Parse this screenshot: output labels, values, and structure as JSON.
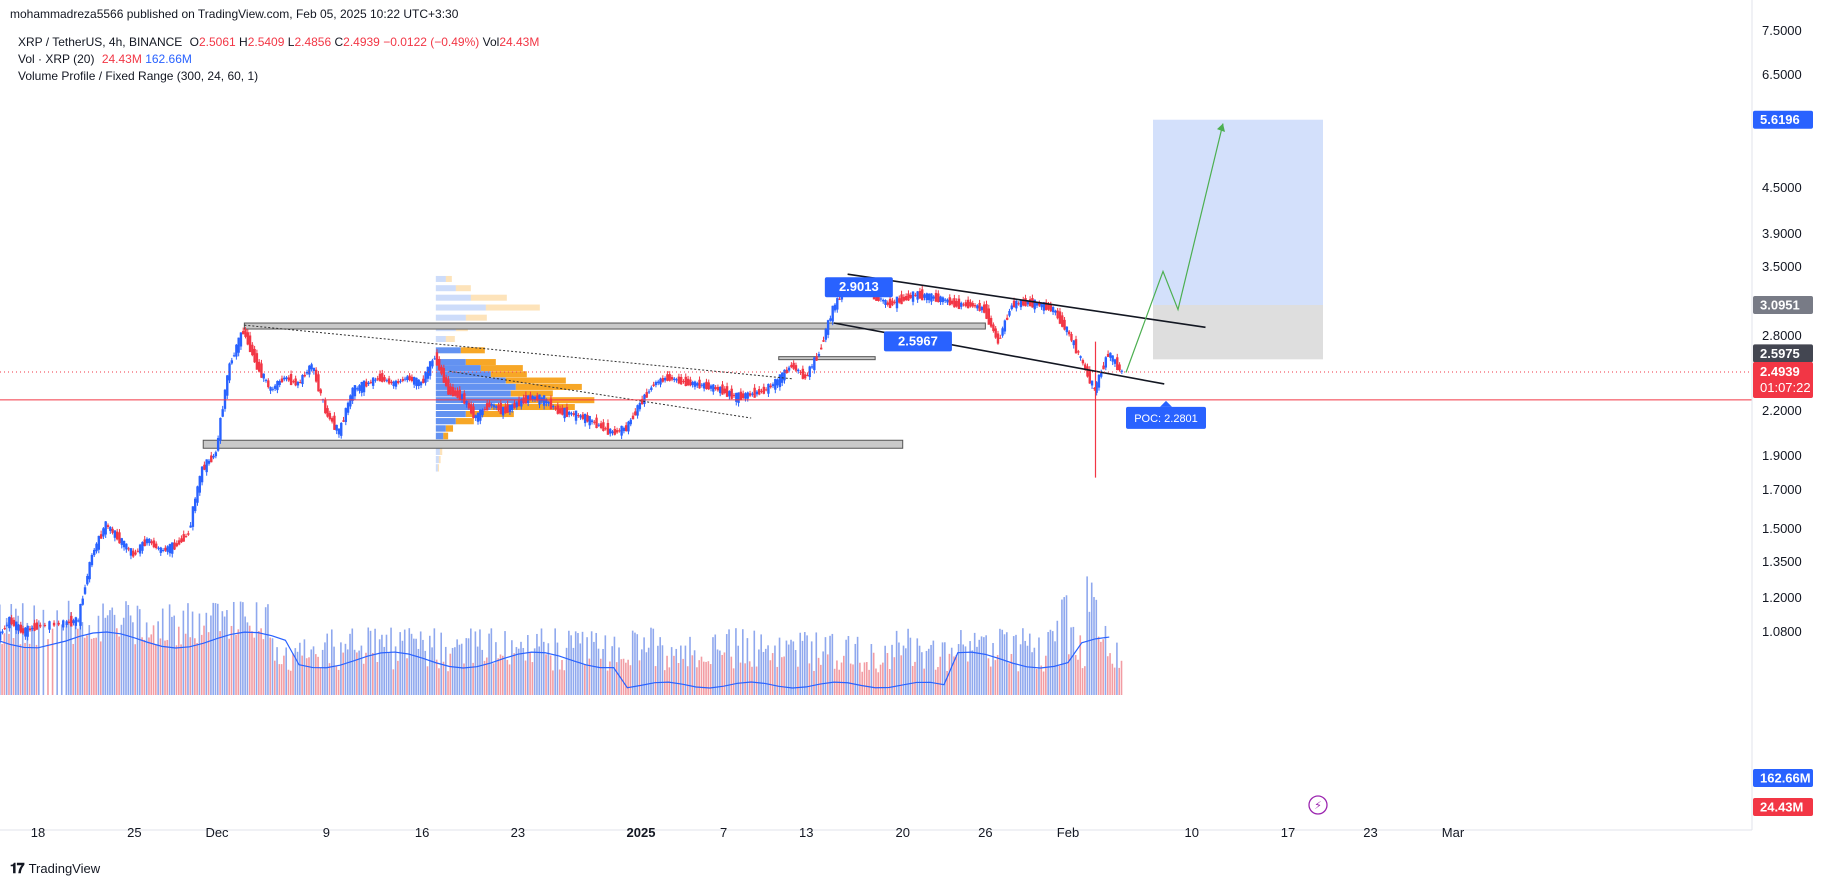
{
  "header": {
    "publisher": "mohammadreza5566 published on TradingView.com, Feb 05, 2025 10:22 UTC+3:30"
  },
  "legend": {
    "symbol": "XRP / TetherUS, 4h, BINANCE",
    "o_key": "O",
    "o_val": "2.5061",
    "h_key": "H",
    "h_val": "2.5409",
    "l_key": "L",
    "l_val": "2.4856",
    "c_key": "C",
    "c_val": "2.4939",
    "change": "−0.0122 (−0.49%)",
    "vol_key": "Vol",
    "vol_val": "24.43M",
    "vol_indicator": "Vol · XRP (20)",
    "vol_ind_val1": "24.43M",
    "vol_ind_val2": "162.66M",
    "vp_indicator": "Volume Profile / Fixed Range (300, 24, 60, 1)"
  },
  "footer": {
    "brand": "TradingView"
  },
  "colors": {
    "up": "#2962ff",
    "down": "#f23645",
    "vp_up": "#5b8cf0",
    "vp_down": "#f7a21b",
    "target_zone": "#d3e0fb",
    "stop_zone": "#dedede",
    "projection": "#4caf50",
    "ma_line": "#2962ff"
  },
  "chart_data": {
    "type": "candlestick",
    "scale": "log",
    "price_axis_ticks": [
      "7.5000",
      "6.5000",
      "4.5000",
      "3.9000",
      "3.5000",
      "2.8000",
      "2.2000",
      "1.9000",
      "1.7000",
      "1.5000",
      "1.3500",
      "1.2000",
      "1.0800"
    ],
    "time_axis_ticks": [
      "18",
      "25",
      "Dec",
      "9",
      "16",
      "23",
      "2025",
      "7",
      "13",
      "20",
      "26",
      "Feb",
      "10",
      "17",
      "23",
      "Mar"
    ],
    "price_labels": {
      "target": "5.6196",
      "entry": "3.0951",
      "stop": "2.5975",
      "last": "2.4939",
      "countdown": "01:07:22",
      "vol_ma": "162.66M",
      "vol": "24.43M"
    },
    "annotations": {
      "label_1": "2.9013",
      "label_2": "2.5967",
      "poc": "POC: 2.2801"
    },
    "trend_price_path": [
      [
        "Nov 15",
        1.05
      ],
      [
        "Nov 16",
        1.12
      ],
      [
        "Nov 17",
        1.08
      ],
      [
        "Nov 18",
        1.1
      ],
      [
        "Nov 20",
        1.11
      ],
      [
        "Nov 21",
        1.12
      ],
      [
        "Nov 22",
        1.38
      ],
      [
        "Nov 23",
        1.52
      ],
      [
        "Nov 24",
        1.45
      ],
      [
        "Nov 25",
        1.38
      ],
      [
        "Nov 26",
        1.45
      ],
      [
        "Nov 27",
        1.4
      ],
      [
        "Nov 28",
        1.42
      ],
      [
        "Nov 29",
        1.48
      ],
      [
        "Nov 30",
        1.82
      ],
      [
        "Dec 1",
        1.92
      ],
      [
        "Dec 2",
        2.55
      ],
      [
        "Dec 3",
        2.85
      ],
      [
        "Dec 4",
        2.55
      ],
      [
        "Dec 5",
        2.35
      ],
      [
        "Dec 6",
        2.45
      ],
      [
        "Dec 7",
        2.4
      ],
      [
        "Dec 8",
        2.55
      ],
      [
        "Dec 9",
        2.2
      ],
      [
        "Dec 10",
        2.05
      ],
      [
        "Dec 11",
        2.35
      ],
      [
        "Dec 12",
        2.4
      ],
      [
        "Dec 13",
        2.45
      ],
      [
        "Dec 14",
        2.4
      ],
      [
        "Dec 15",
        2.45
      ],
      [
        "Dec 16",
        2.4
      ],
      [
        "Dec 17",
        2.62
      ],
      [
        "Dec 18",
        2.35
      ],
      [
        "Dec 19",
        2.3
      ],
      [
        "Dec 20",
        2.15
      ],
      [
        "Dec 21",
        2.25
      ],
      [
        "Dec 22",
        2.2
      ],
      [
        "Dec 23",
        2.25
      ],
      [
        "Dec 24",
        2.3
      ],
      [
        "Dec 25",
        2.28
      ],
      [
        "Dec 26",
        2.2
      ],
      [
        "Dec 27",
        2.18
      ],
      [
        "Dec 28",
        2.15
      ],
      [
        "Dec 29",
        2.1
      ],
      [
        "Dec 30",
        2.05
      ],
      [
        "Dec 31",
        2.08
      ],
      [
        "Jan 1",
        2.25
      ],
      [
        "Jan 2",
        2.4
      ],
      [
        "Jan 3",
        2.45
      ],
      [
        "Jan 4",
        2.42
      ],
      [
        "Jan 5",
        2.4
      ],
      [
        "Jan 6",
        2.38
      ],
      [
        "Jan 7",
        2.35
      ],
      [
        "Jan 8",
        2.3
      ],
      [
        "Jan 9",
        2.32
      ],
      [
        "Jan 10",
        2.35
      ],
      [
        "Jan 11",
        2.42
      ],
      [
        "Jan 12",
        2.55
      ],
      [
        "Jan 13",
        2.45
      ],
      [
        "Jan 14",
        2.65
      ],
      [
        "Jan 15",
        3.05
      ],
      [
        "Jan 16",
        3.3
      ],
      [
        "Jan 17",
        3.25
      ],
      [
        "Jan 18",
        3.2
      ],
      [
        "Jan 19",
        3.1
      ],
      [
        "Jan 20",
        3.15
      ],
      [
        "Jan 21",
        3.2
      ],
      [
        "Jan 22",
        3.18
      ],
      [
        "Jan 23",
        3.15
      ],
      [
        "Jan 24",
        3.1
      ],
      [
        "Jan 25",
        3.1
      ],
      [
        "Jan 26",
        3.05
      ],
      [
        "Jan 27",
        2.75
      ],
      [
        "Jan 28",
        3.1
      ],
      [
        "Jan 29",
        3.12
      ],
      [
        "Jan 30",
        3.1
      ],
      [
        "Jan 31",
        3.05
      ],
      [
        "Feb 1",
        2.85
      ],
      [
        "Feb 2",
        2.6
      ],
      [
        "Feb 3",
        2.35
      ],
      [
        "Feb 4",
        2.65
      ],
      [
        "Feb 5",
        2.49
      ]
    ]
  }
}
